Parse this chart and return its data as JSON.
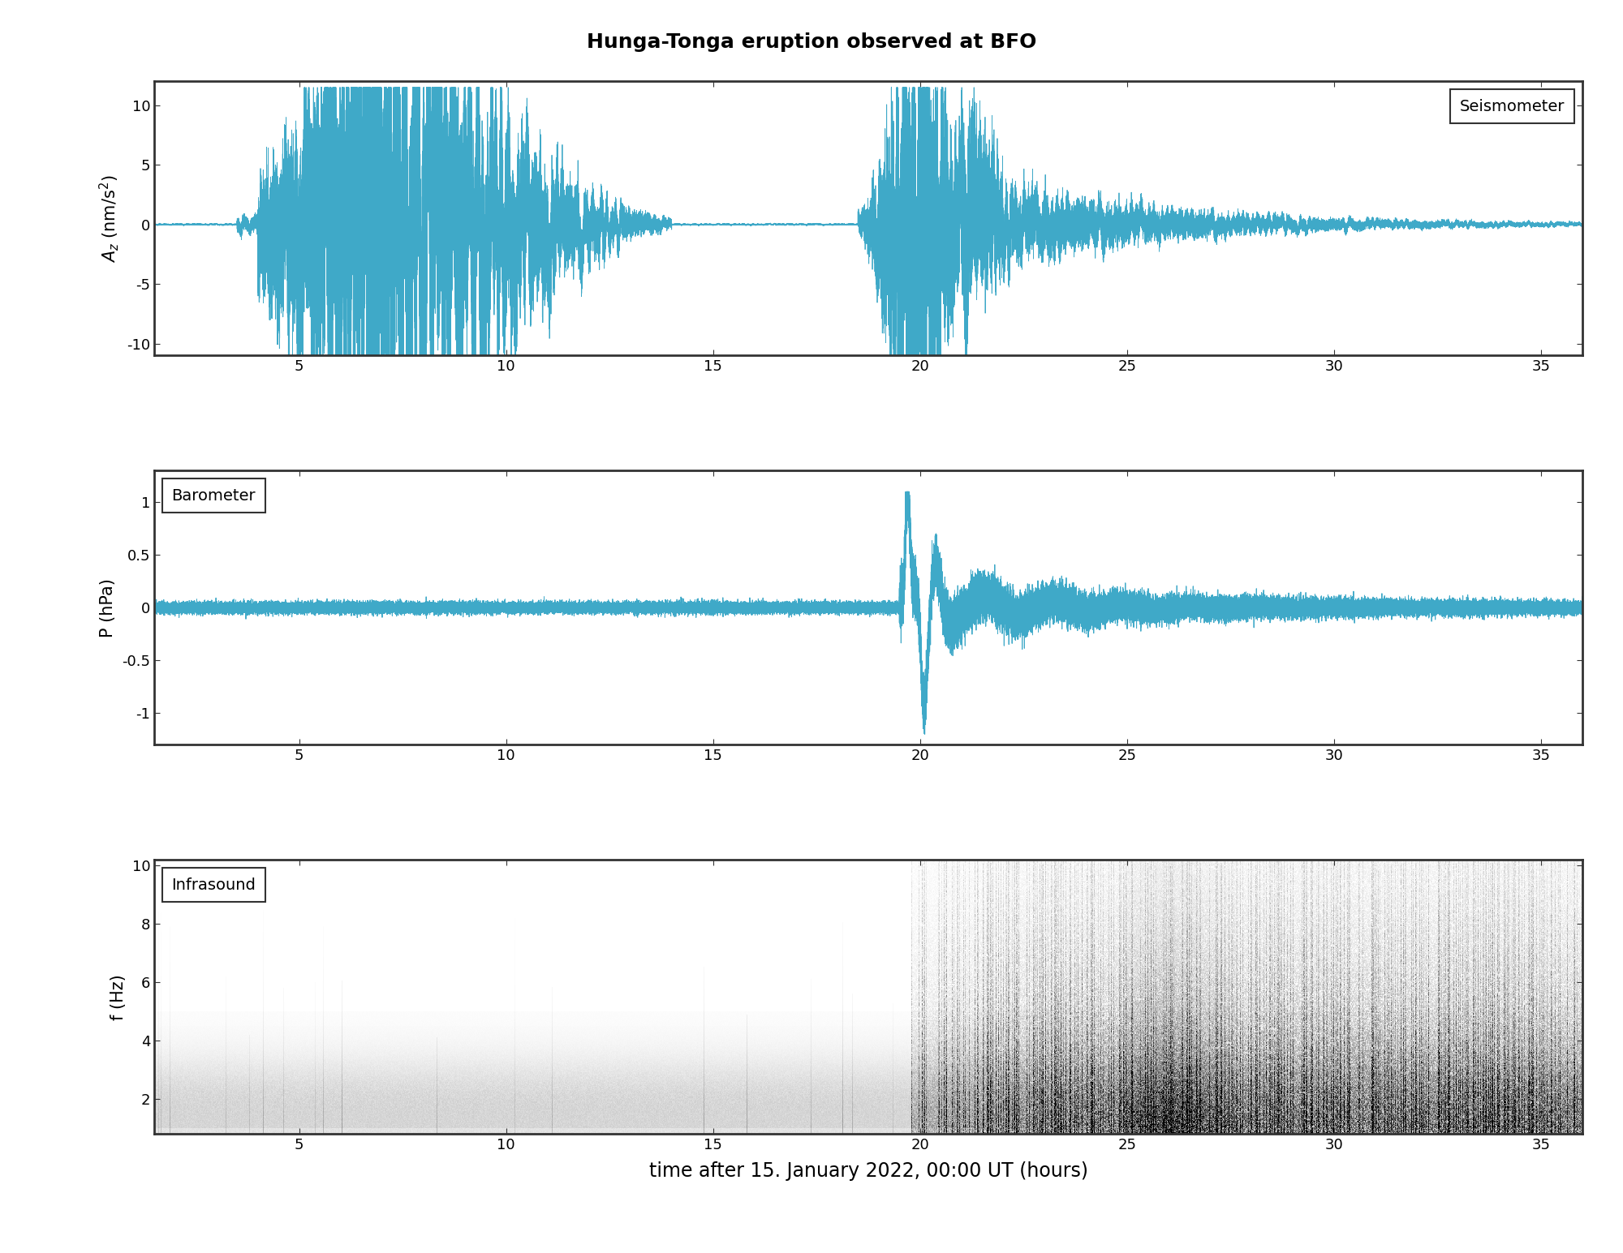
{
  "title": "Hunga-Tonga eruption observed at BFO",
  "title_fontsize": 18,
  "xlabel": "time after 15. January 2022, 00:00 UT (hours)",
  "xlabel_fontsize": 17,
  "xlim": [
    1.5,
    36
  ],
  "xticks": [
    5,
    10,
    15,
    20,
    25,
    30,
    35
  ],
  "panel1": {
    "ylabel": "$A_z$ (nm/s$^2$)",
    "ylim": [
      -11,
      12
    ],
    "yticks": [
      -10,
      -5,
      0,
      5,
      10
    ],
    "legend": "Seismometer",
    "line_color": "#3fa9c8",
    "line_width": 0.6
  },
  "panel2": {
    "ylabel": "P (hPa)",
    "ylim": [
      -1.3,
      1.3
    ],
    "yticks": [
      -1,
      -0.5,
      0,
      0.5,
      1
    ],
    "legend": "Barometer",
    "line_color": "#3fa9c8",
    "line_width": 0.7
  },
  "panel3": {
    "ylabel": "f (Hz)",
    "ylim": [
      0.8,
      10.2
    ],
    "yticks": [
      2,
      4,
      6,
      8,
      10
    ],
    "legend": "Infrasound",
    "cmap": "gray_r"
  },
  "background_color": "#ffffff",
  "tick_fontsize": 13,
  "label_fontsize": 15
}
